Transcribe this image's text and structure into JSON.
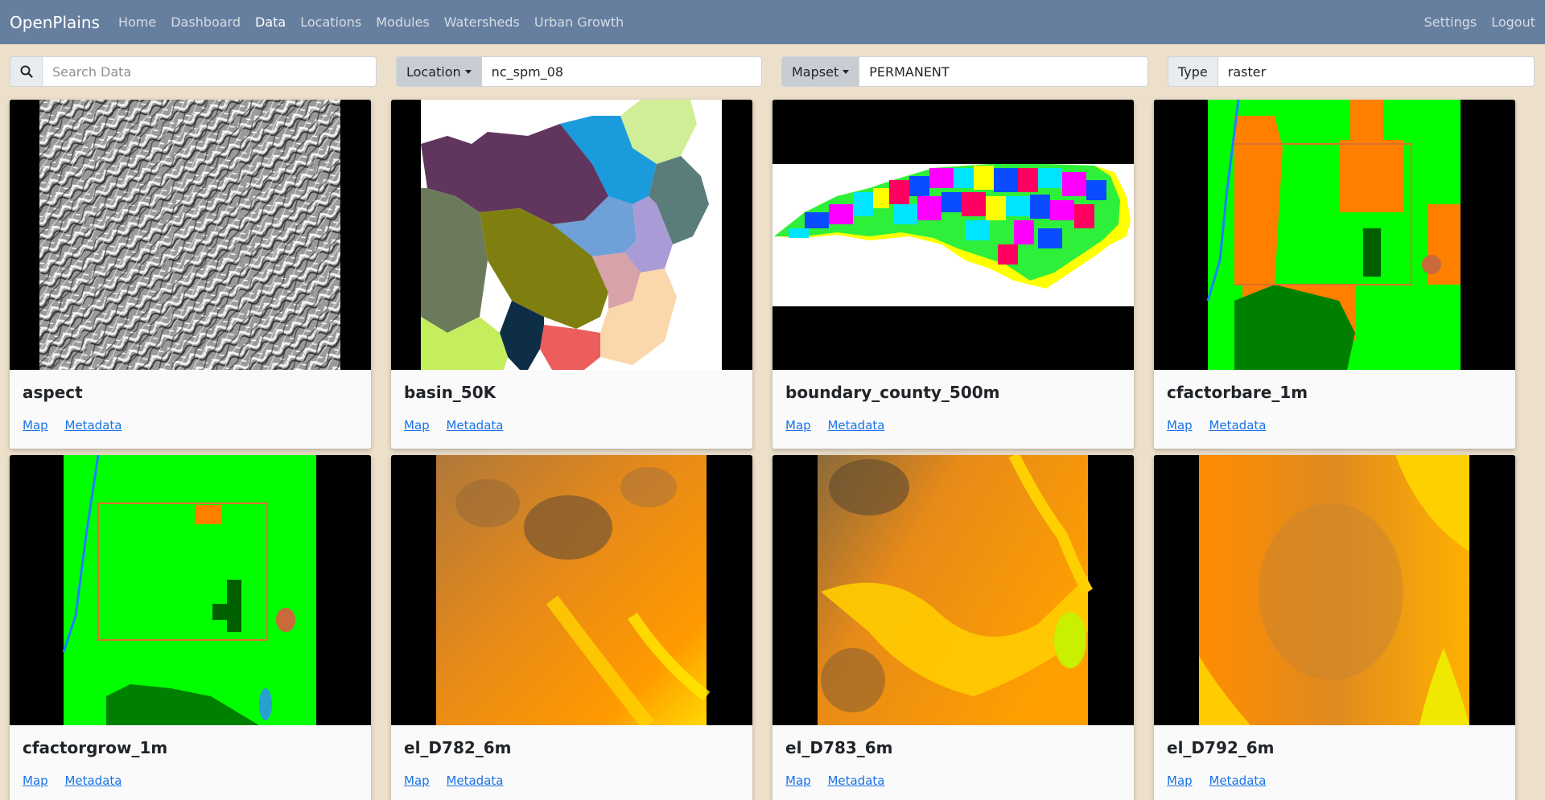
{
  "navbar": {
    "brand": "OpenPlains",
    "links": [
      "Home",
      "Dashboard",
      "Data",
      "Locations",
      "Modules",
      "Watersheds",
      "Urban Growth"
    ],
    "right_links": [
      "Settings",
      "Logout"
    ]
  },
  "filters": {
    "search_placeholder": "Search Data",
    "location_label": "Location",
    "location_value": "nc_spm_08",
    "mapset_label": "Mapset",
    "mapset_value": "PERMANENT",
    "type_label": "Type",
    "type_value": "raster"
  },
  "cards": [
    {
      "title": "aspect",
      "map_label": "Map",
      "metadata_label": "Metadata"
    },
    {
      "title": "basin_50K",
      "map_label": "Map",
      "metadata_label": "Metadata"
    },
    {
      "title": "boundary_county_500m",
      "map_label": "Map",
      "metadata_label": "Metadata"
    },
    {
      "title": "cfactorbare_1m",
      "map_label": "Map",
      "metadata_label": "Metadata"
    },
    {
      "title": "cfactorgrow_1m",
      "map_label": "Map",
      "metadata_label": "Metadata"
    },
    {
      "title": "el_D782_6m",
      "map_label": "Map",
      "metadata_label": "Metadata"
    },
    {
      "title": "el_D783_6m",
      "map_label": "Map",
      "metadata_label": "Metadata"
    },
    {
      "title": "el_D792_6m",
      "map_label": "Map",
      "metadata_label": "Metadata"
    }
  ],
  "colors": {
    "navbar": "#677f9f",
    "page_background": "#ede0cb",
    "link": "#1a73e8"
  }
}
